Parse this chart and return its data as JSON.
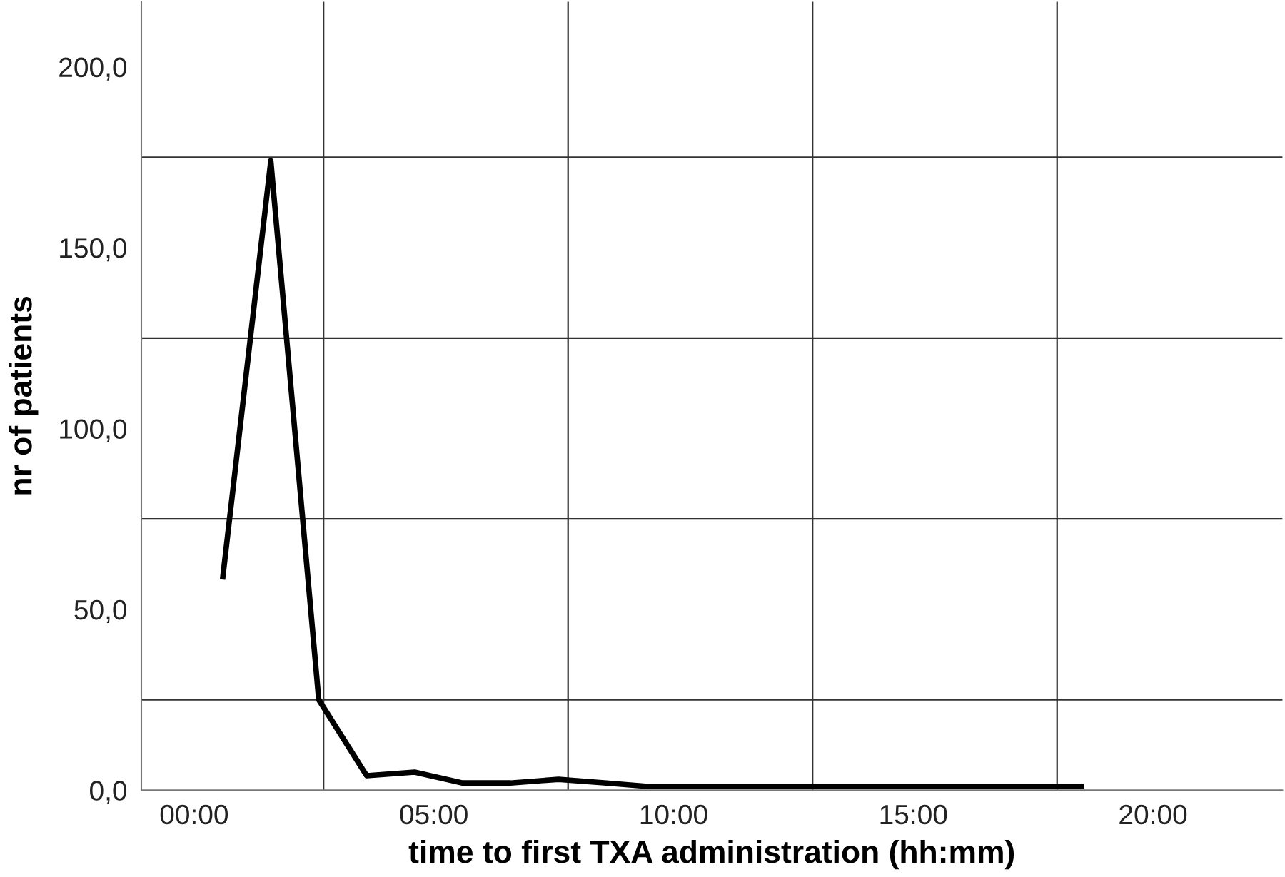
{
  "chart_data": {
    "type": "line",
    "xlabel": "time to first TXA administration (hh:mm)",
    "ylabel": "nr of patients",
    "x": [
      0.6,
      1.6,
      2.6,
      3.6,
      4.6,
      5.6,
      6.6,
      7.6,
      8.6,
      9.5,
      10.5,
      11.5,
      12.5,
      13.5,
      14.5,
      15.5,
      16.5,
      17.5,
      18.5
    ],
    "series": [
      {
        "color": "#000000",
        "values": [
          59,
          174,
          25,
          4,
          5,
          2,
          2,
          3,
          2,
          1,
          1,
          1,
          1,
          1,
          1,
          1,
          1,
          1,
          1
        ]
      }
    ],
    "xlim": [
      -1.1,
      22.7
    ],
    "ylim": [
      0,
      218
    ],
    "xticks": [
      {
        "value": 0,
        "label": "00:00"
      },
      {
        "value": 5,
        "label": "05:00"
      },
      {
        "value": 10,
        "label": "10:00"
      },
      {
        "value": 15,
        "label": "15:00"
      },
      {
        "value": 20,
        "label": "20:00"
      }
    ],
    "yticks": [
      {
        "value": 0,
        "label": "0,0"
      },
      {
        "value": 50,
        "label": "50,0"
      },
      {
        "value": 100,
        "label": "100,0"
      },
      {
        "value": 150,
        "label": "150,0"
      },
      {
        "value": 200,
        "label": "200,0"
      }
    ],
    "ref_lines": [
      {
        "axis": "y",
        "value": 25,
        "color": "#333333"
      },
      {
        "axis": "y",
        "value": 75,
        "color": "#333333"
      },
      {
        "axis": "y",
        "value": 125,
        "color": "#333333"
      },
      {
        "axis": "y",
        "value": 175,
        "color": "#333333"
      },
      {
        "axis": "x",
        "value": 2.7,
        "color": "#333333"
      },
      {
        "axis": "x",
        "value": 7.8,
        "color": "#333333"
      },
      {
        "axis": "x",
        "value": 12.9,
        "color": "#333333"
      },
      {
        "axis": "x",
        "value": 18.0,
        "color": "#333333"
      }
    ],
    "grid": false,
    "marker": "none",
    "line_style": "solid"
  }
}
